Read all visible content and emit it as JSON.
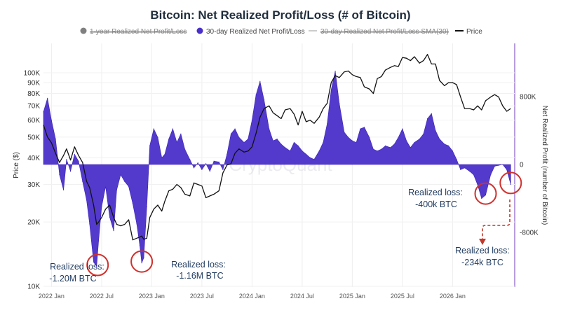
{
  "chart_data": {
    "type": "area",
    "title": "Bitcoin: Net Realized Profit/Loss (# of Bitcoin)",
    "legend": {
      "position": "top-center",
      "entries": [
        {
          "label": "1-year Realized Net Profit/Loss",
          "color": "#7f7f7f",
          "struck": true
        },
        {
          "label": "30-day Realized Net Profit/Loss",
          "color": "#4a2fc9",
          "struck": false
        },
        {
          "label": "30-day Realized Net Profit/Loss SMA(30)",
          "color": "#cccccc",
          "struck": true
        },
        {
          "label": "Price",
          "color": "#111111",
          "struck": false
        }
      ]
    },
    "y_left": {
      "label": "Price ($)",
      "scale": "log",
      "ticks": [
        "10K",
        "20K",
        "30K",
        "40K",
        "50K",
        "60K",
        "70K",
        "80K",
        "90K",
        "100K"
      ],
      "tick_values": [
        10000,
        20000,
        30000,
        40000,
        50000,
        60000,
        70000,
        80000,
        90000,
        100000
      ]
    },
    "y_right": {
      "label": "Net Realized Profit (number of Bitcoin)",
      "ticks": [
        "800K",
        "0",
        "-800K"
      ],
      "tick_values": [
        800000,
        0,
        -800000
      ]
    },
    "x_ticks": [
      "2022 Jan",
      "2022 Jul",
      "2023 Jan",
      "2023 Jul",
      "2024 Jan",
      "2024 Jul",
      "2025 Jan",
      "2025 Jul",
      "2026 Jan"
    ],
    "x_tick_dates": [
      2022.0,
      2022.5,
      2023.0,
      2023.5,
      2024.0,
      2024.5,
      2025.0,
      2025.5,
      2026.0
    ],
    "x_range": [
      2021.92,
      2026.62
    ],
    "grid": true,
    "series": [
      {
        "name": "30-day Realized Net Profit/Loss",
        "color": "#4a2fc9",
        "x": [
          2021.92,
          2021.96,
          2022.0,
          2022.04,
          2022.08,
          2022.12,
          2022.15,
          2022.19,
          2022.23,
          2022.27,
          2022.31,
          2022.35,
          2022.38,
          2022.42,
          2022.45,
          2022.47,
          2022.5,
          2022.54,
          2022.58,
          2022.62,
          2022.65,
          2022.69,
          2022.73,
          2022.77,
          2022.81,
          2022.85,
          2022.88,
          2022.9,
          2022.92,
          2022.95,
          2022.98,
          2023.02,
          2023.06,
          2023.1,
          2023.13,
          2023.17,
          2023.21,
          2023.25,
          2023.29,
          2023.33,
          2023.38,
          2023.42,
          2023.46,
          2023.5,
          2023.54,
          2023.58,
          2023.62,
          2023.67,
          2023.71,
          2023.75,
          2023.79,
          2023.83,
          2023.87,
          2023.92,
          2023.96,
          2024.0,
          2024.04,
          2024.08,
          2024.12,
          2024.17,
          2024.21,
          2024.25,
          2024.29,
          2024.33,
          2024.38,
          2024.42,
          2024.46,
          2024.5,
          2024.54,
          2024.58,
          2024.62,
          2024.67,
          2024.71,
          2024.75,
          2024.79,
          2024.83,
          2024.87,
          2024.92,
          2024.96,
          2025.0,
          2025.04,
          2025.08,
          2025.12,
          2025.17,
          2025.21,
          2025.25,
          2025.29,
          2025.33,
          2025.38,
          2025.42,
          2025.46,
          2025.5,
          2025.54,
          2025.58,
          2025.62,
          2025.67,
          2025.71,
          2025.75,
          2025.79,
          2025.83,
          2025.87,
          2025.92,
          2025.96,
          2026.0,
          2026.04,
          2026.08,
          2026.12,
          2026.17,
          2026.21,
          2026.25,
          2026.29,
          2026.33,
          2026.38,
          2026.42,
          2026.46,
          2026.5,
          2026.54,
          2026.58
        ],
        "values": [
          620000,
          780000,
          520000,
          300000,
          -120000,
          -300000,
          60000,
          -80000,
          120000,
          40000,
          -200000,
          -420000,
          -700000,
          -1150000,
          -1200000,
          -900000,
          -500000,
          -260000,
          -620000,
          -780000,
          -300000,
          -120000,
          -200000,
          -260000,
          -460000,
          -700000,
          -950000,
          -1160000,
          -1100000,
          -500000,
          220000,
          420000,
          320000,
          80000,
          120000,
          300000,
          420000,
          260000,
          360000,
          180000,
          60000,
          -40000,
          20000,
          -60000,
          10000,
          -80000,
          40000,
          30000,
          -60000,
          120000,
          360000,
          420000,
          320000,
          260000,
          300000,
          520000,
          820000,
          980000,
          760000,
          420000,
          280000,
          300000,
          240000,
          200000,
          160000,
          260000,
          220000,
          160000,
          120000,
          80000,
          60000,
          160000,
          260000,
          480000,
          880000,
          1100000,
          720000,
          380000,
          320000,
          280000,
          260000,
          420000,
          440000,
          320000,
          180000,
          160000,
          180000,
          220000,
          200000,
          240000,
          320000,
          420000,
          280000,
          200000,
          260000,
          300000,
          360000,
          540000,
          600000,
          400000,
          300000,
          240000,
          220000,
          160000,
          60000,
          -60000,
          -40000,
          -80000,
          -120000,
          -240000,
          -400000,
          -360000,
          -120000,
          -20000,
          -10000,
          0,
          -60000,
          -234000
        ]
      },
      {
        "name": "Price",
        "color": "#111111",
        "x": [
          2021.92,
          2021.96,
          2022.0,
          2022.04,
          2022.08,
          2022.12,
          2022.15,
          2022.19,
          2022.23,
          2022.27,
          2022.31,
          2022.35,
          2022.38,
          2022.42,
          2022.45,
          2022.47,
          2022.5,
          2022.54,
          2022.58,
          2022.62,
          2022.65,
          2022.69,
          2022.73,
          2022.77,
          2022.81,
          2022.85,
          2022.88,
          2022.9,
          2022.92,
          2022.95,
          2022.98,
          2023.02,
          2023.06,
          2023.1,
          2023.13,
          2023.17,
          2023.21,
          2023.25,
          2023.29,
          2023.33,
          2023.38,
          2023.42,
          2023.46,
          2023.5,
          2023.54,
          2023.58,
          2023.62,
          2023.67,
          2023.71,
          2023.75,
          2023.79,
          2023.83,
          2023.87,
          2023.92,
          2023.96,
          2024.0,
          2024.04,
          2024.08,
          2024.12,
          2024.17,
          2024.21,
          2024.25,
          2024.29,
          2024.33,
          2024.38,
          2024.42,
          2024.46,
          2024.5,
          2024.54,
          2024.58,
          2024.62,
          2024.67,
          2024.71,
          2024.75,
          2024.79,
          2024.83,
          2024.87,
          2024.92,
          2024.96,
          2025.0,
          2025.04,
          2025.08,
          2025.12,
          2025.17,
          2025.21,
          2025.25,
          2025.29,
          2025.33,
          2025.38,
          2025.42,
          2025.46,
          2025.5,
          2025.54,
          2025.58,
          2025.62,
          2025.67,
          2025.71,
          2025.75,
          2025.79,
          2025.83,
          2025.87,
          2025.92,
          2025.96,
          2026.0,
          2026.04,
          2026.08,
          2026.12,
          2026.17,
          2026.21,
          2026.25,
          2026.29,
          2026.33,
          2026.38,
          2026.42,
          2026.46,
          2026.5,
          2026.54,
          2026.58
        ],
        "values": [
          57000,
          50000,
          47000,
          42000,
          38000,
          41000,
          44000,
          39000,
          45000,
          41000,
          38000,
          31000,
          29000,
          24000,
          19500,
          20000,
          21000,
          23000,
          24000,
          21000,
          19500,
          19200,
          19500,
          20500,
          16500,
          16800,
          17000,
          17200,
          16600,
          16800,
          21000,
          23000,
          24000,
          22500,
          25000,
          28000,
          28500,
          30000,
          29000,
          27000,
          26500,
          30500,
          30000,
          29500,
          26000,
          26500,
          27000,
          28000,
          34000,
          37000,
          37500,
          42000,
          44000,
          42500,
          43000,
          45000,
          52000,
          62000,
          68000,
          70000,
          65000,
          63000,
          61000,
          67000,
          68000,
          64000,
          57000,
          66000,
          59000,
          60000,
          58000,
          62000,
          68000,
          72000,
          90000,
          97000,
          95000,
          101000,
          102000,
          98000,
          96000,
          95000,
          86000,
          84000,
          80000,
          94000,
          96000,
          103000,
          106000,
          108000,
          107000,
          118000,
          117000,
          114000,
          119000,
          111000,
          114000,
          122000,
          110000,
          110000,
          92000,
          87000,
          90000,
          90000,
          88000,
          77000,
          68000,
          68000,
          67000,
          70000,
          67000,
          74000,
          77000,
          79000,
          77000,
          70000,
          66000,
          68000
        ]
      }
    ],
    "annotations": [
      {
        "line1": "Realized loss:",
        "line2": "-1.20M BTC"
      },
      {
        "line1": "Realized loss:",
        "line2": "-1.16M BTC"
      },
      {
        "line1": "Realized loss:",
        "line2": "-400k BTC"
      },
      {
        "line1": "Realized loss:",
        "line2": "-234k BTC"
      }
    ],
    "highlight_dates": [
      2022.46,
      2022.9,
      2026.33,
      2026.58
    ],
    "watermark": "CryptoQuant"
  }
}
